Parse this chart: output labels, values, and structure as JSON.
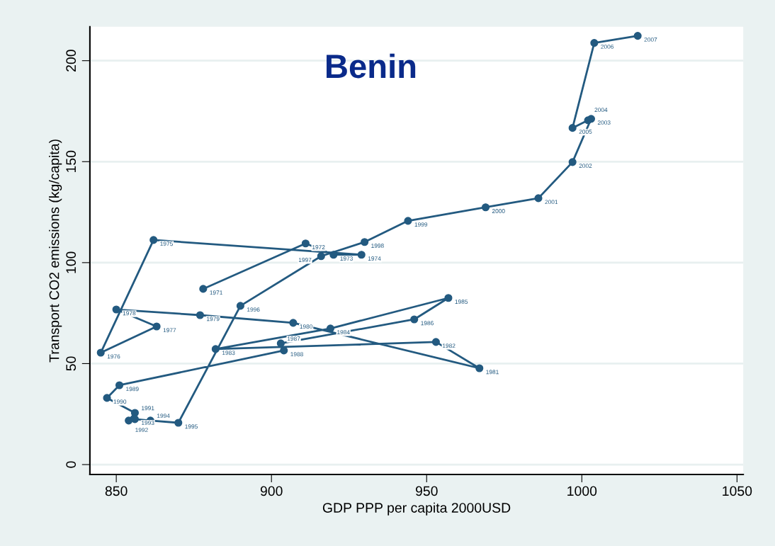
{
  "chart_data": {
    "type": "line",
    "title": "Benin",
    "xlabel": "GDP PPP per capita 2000USD",
    "ylabel": "Transport CO2 emissions (kg/capita)",
    "x": [
      878,
      911,
      920,
      929,
      862,
      845,
      863,
      850,
      877,
      907,
      967,
      953,
      882,
      919,
      957,
      946,
      903,
      904,
      851,
      847,
      856,
      854,
      856,
      861,
      870,
      890,
      916,
      930,
      944,
      969,
      986,
      997,
      1003,
      1002,
      997,
      1004,
      1018
    ],
    "series": [
      {
        "color": "#235a80",
        "values": [
          87,
          109.5,
          103.9,
          103.9,
          111.2,
          55.4,
          68.4,
          76.8,
          74,
          70.2,
          47.7,
          60.7,
          57.2,
          67.4,
          82.5,
          71.9,
          60,
          56.5,
          39.3,
          33,
          25.6,
          21.8,
          22.5,
          21.8,
          20.7,
          78.6,
          103.2,
          110.2,
          120.7,
          127.4,
          131.9,
          149.8,
          171.2,
          170.5,
          166.7,
          208.8,
          212.3
        ]
      }
    ],
    "annotations": [
      {
        "text": "1971",
        "x": 878,
        "y": 87
      },
      {
        "text": "1972",
        "x": 911,
        "y": 109.5
      },
      {
        "text": "1973",
        "x": 920,
        "y": 103.9
      },
      {
        "text": "1974",
        "x": 929,
        "y": 103.9
      },
      {
        "text": "1975",
        "x": 862,
        "y": 111.2
      },
      {
        "text": "1976",
        "x": 845,
        "y": 55.4
      },
      {
        "text": "1977",
        "x": 863,
        "y": 68.4
      },
      {
        "text": "1978",
        "x": 850,
        "y": 76.8
      },
      {
        "text": "1979",
        "x": 877,
        "y": 74
      },
      {
        "text": "1980",
        "x": 907,
        "y": 70.2
      },
      {
        "text": "1981",
        "x": 967,
        "y": 47.7
      },
      {
        "text": "1982",
        "x": 953,
        "y": 60.7
      },
      {
        "text": "1983",
        "x": 882,
        "y": 57.2
      },
      {
        "text": "1984",
        "x": 919,
        "y": 67.4
      },
      {
        "text": "1985",
        "x": 957,
        "y": 82.5
      },
      {
        "text": "1986",
        "x": 946,
        "y": 71.9
      },
      {
        "text": "1987",
        "x": 903,
        "y": 60
      },
      {
        "text": "1988",
        "x": 904,
        "y": 56.5
      },
      {
        "text": "1989",
        "x": 851,
        "y": 39.3
      },
      {
        "text": "1990",
        "x": 847,
        "y": 33
      },
      {
        "text": "1991",
        "x": 856,
        "y": 25.6
      },
      {
        "text": "1992",
        "x": 854,
        "y": 21.8
      },
      {
        "text": "1993",
        "x": 856,
        "y": 22.5
      },
      {
        "text": "1994",
        "x": 861,
        "y": 21.8
      },
      {
        "text": "1995",
        "x": 870,
        "y": 20.7
      },
      {
        "text": "1996",
        "x": 890,
        "y": 78.6
      },
      {
        "text": "1997",
        "x": 916,
        "y": 103.2
      },
      {
        "text": "1998",
        "x": 930,
        "y": 110.2
      },
      {
        "text": "1999",
        "x": 944,
        "y": 120.7
      },
      {
        "text": "2000",
        "x": 969,
        "y": 127.4
      },
      {
        "text": "2001",
        "x": 986,
        "y": 131.9
      },
      {
        "text": "2002",
        "x": 997,
        "y": 149.8
      },
      {
        "text": "2003",
        "x": 1003,
        "y": 171.2
      },
      {
        "text": "2004",
        "x": 1002,
        "y": 170.5
      },
      {
        "text": "2005",
        "x": 997,
        "y": 166.7
      },
      {
        "text": "2006",
        "x": 1004,
        "y": 208.8
      },
      {
        "text": "2007",
        "x": 1018,
        "y": 212.3
      }
    ],
    "xlim": [
      841.5,
      1052
    ],
    "ylim": [
      -4.9,
      216.8
    ],
    "xticks": [
      850,
      900,
      950,
      1000,
      1050
    ],
    "yticks": [
      0,
      50,
      100,
      150,
      200
    ],
    "grid": "y",
    "marker": "circle",
    "line_style": "solid",
    "legend": false
  }
}
